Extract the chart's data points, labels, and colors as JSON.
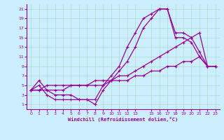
{
  "xlabel": "Windchill (Refroidissement éolien,°C)",
  "bg_color": "#cceeff",
  "grid_color": "#aaddcc",
  "line_color": "#990099",
  "x_hours": [
    0,
    1,
    2,
    3,
    4,
    5,
    6,
    7,
    8,
    9,
    10,
    11,
    12,
    13,
    14,
    15,
    16,
    17,
    18,
    19,
    20,
    21,
    22,
    23
  ],
  "y_temp": [
    4,
    6,
    4,
    3,
    3,
    3,
    2,
    2,
    2,
    5,
    7,
    9,
    13,
    16,
    19,
    20,
    21,
    21,
    16,
    16,
    15,
    12,
    9,
    9
  ],
  "y_windchill": [
    4,
    5,
    3,
    2,
    2,
    2,
    2,
    2,
    1,
    4,
    6,
    8,
    10,
    13,
    17,
    19,
    21,
    21,
    15,
    15,
    14,
    11,
    9,
    9
  ],
  "y_diag1": [
    4,
    4,
    5,
    5,
    5,
    5,
    5,
    5,
    6,
    6,
    6,
    7,
    7,
    8,
    9,
    10,
    11,
    12,
    13,
    14,
    15,
    16,
    9,
    9
  ],
  "y_diag2": [
    4,
    4,
    4,
    4,
    4,
    5,
    5,
    5,
    5,
    5,
    6,
    6,
    6,
    7,
    7,
    8,
    8,
    9,
    9,
    10,
    10,
    11,
    9,
    9
  ],
  "xlim": [
    -0.5,
    23.5
  ],
  "ylim": [
    0,
    22
  ],
  "yticks": [
    1,
    3,
    5,
    7,
    9,
    11,
    13,
    15,
    17,
    19,
    21
  ],
  "xticks": [
    0,
    1,
    2,
    3,
    4,
    5,
    6,
    7,
    8,
    9,
    10,
    11,
    12,
    13,
    15,
    16,
    17,
    18,
    19,
    20,
    21,
    22,
    23
  ],
  "figsize": [
    3.2,
    2.0
  ],
  "dpi": 100
}
